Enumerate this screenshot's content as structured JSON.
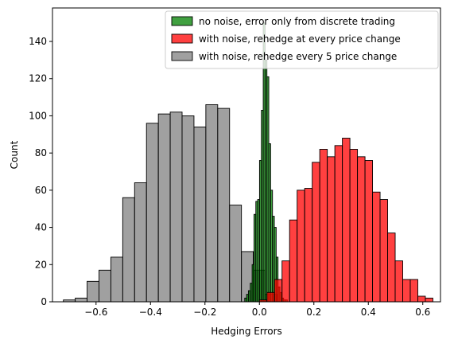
{
  "chart_data": {
    "type": "histogram",
    "xlabel": "Hedging Errors",
    "ylabel": "Count",
    "xlim": [
      -0.76,
      0.665
    ],
    "ylim": [
      0,
      158
    ],
    "xticks": [
      -0.6,
      -0.4,
      -0.2,
      0.0,
      0.2,
      0.4,
      0.6
    ],
    "xtick_labels": [
      "−0.6",
      "−0.4",
      "−0.2",
      "0.0",
      "0.2",
      "0.4",
      "0.6"
    ],
    "yticks": [
      0,
      20,
      40,
      60,
      80,
      100,
      120,
      140
    ],
    "ytick_labels": [
      "0",
      "20",
      "40",
      "60",
      "80",
      "100",
      "120",
      "140"
    ],
    "legend_position": "upper right",
    "series": [
      {
        "name": "no noise, error only from discrete trading",
        "color": "#008000",
        "bin_start": -0.054,
        "bin_width": 0.0068,
        "counts": [
          2,
          4,
          6,
          10,
          20,
          47,
          54,
          55,
          76,
          103,
          150,
          130,
          121,
          85,
          60,
          46,
          40,
          24,
          8,
          5,
          2,
          1,
          1
        ]
      },
      {
        "name": "with noise, rehedge at every price change",
        "color": "#ff0000",
        "bin_start": 0.0,
        "bin_width": 0.0277,
        "counts": [
          1,
          5,
          12,
          22,
          44,
          60,
          61,
          75,
          82,
          78,
          84,
          88,
          82,
          78,
          76,
          59,
          55,
          37,
          22,
          12,
          12,
          3,
          2
        ]
      },
      {
        "name": "with noise, rehedge every 5 price change",
        "color": "#808080",
        "bin_start": -0.72,
        "bin_width": 0.0436,
        "counts": [
          1,
          2,
          11,
          17,
          24,
          56,
          64,
          96,
          101,
          102,
          100,
          94,
          106,
          104,
          52,
          27,
          17,
          4
        ]
      }
    ]
  }
}
